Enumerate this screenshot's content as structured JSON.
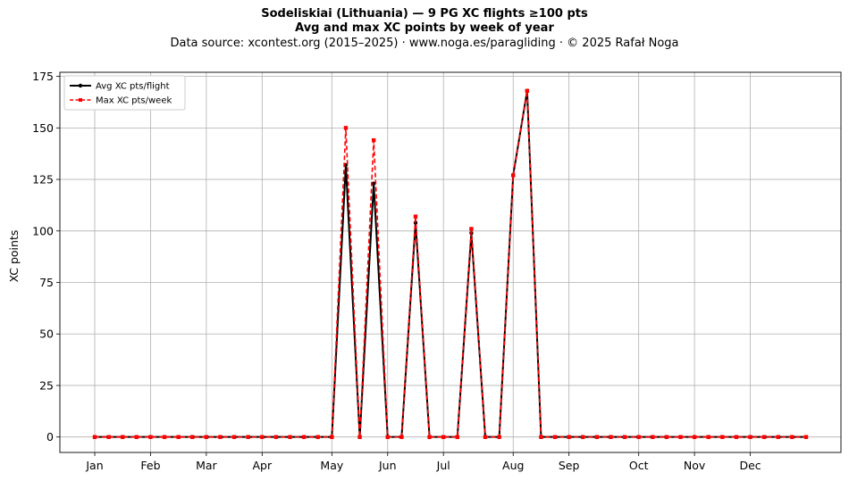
{
  "header": {
    "title": "Sodeliskiai (Lithuania)  —  9 PG XC flights ≥100 pts",
    "subtitle": "Avg and max XC points by week of year",
    "source": "Data source: xcontest.org (2015–2025)  ·  www.noga.es/paragliding  ·  © 2025 Rafał Noga"
  },
  "chart_data": {
    "type": "line",
    "title": "Sodeliskiai (Lithuania)  —  9 PG XC flights ≥100 pts",
    "subtitle": "Avg and max XC points by week of year",
    "xlabel": "",
    "ylabel": "XC points",
    "x": [
      1,
      2,
      3,
      4,
      5,
      6,
      7,
      8,
      9,
      10,
      11,
      12,
      13,
      14,
      15,
      16,
      17,
      18,
      19,
      20,
      21,
      22,
      23,
      24,
      25,
      26,
      27,
      28,
      29,
      30,
      31,
      32,
      33,
      34,
      35,
      36,
      37,
      38,
      39,
      40,
      41,
      42,
      43,
      44,
      45,
      46,
      47,
      48,
      49,
      50,
      51,
      52
    ],
    "xlim": [
      -1.5,
      54.5
    ],
    "ylim": [
      -7.5,
      177
    ],
    "yticks": [
      0,
      25,
      50,
      75,
      100,
      125,
      150,
      175
    ],
    "month_ticks": [
      {
        "label": "Jan",
        "week": 1
      },
      {
        "label": "Feb",
        "week": 5
      },
      {
        "label": "Mar",
        "week": 9
      },
      {
        "label": "Apr",
        "week": 13
      },
      {
        "label": "May",
        "week": 18
      },
      {
        "label": "Jun",
        "week": 22
      },
      {
        "label": "Jul",
        "week": 26
      },
      {
        "label": "Aug",
        "week": 31
      },
      {
        "label": "Sep",
        "week": 35
      },
      {
        "label": "Oct",
        "week": 40
      },
      {
        "label": "Nov",
        "week": 44
      },
      {
        "label": "Dec",
        "week": 48
      }
    ],
    "grid": true,
    "legend_position": "top-left",
    "series": [
      {
        "name": "Avg XC pts/flight",
        "color": "#000000",
        "style": "solid",
        "marker": "circle",
        "values": [
          0,
          0,
          0,
          0,
          0,
          0,
          0,
          0,
          0,
          0,
          0,
          0,
          0,
          0,
          0,
          0,
          0,
          0,
          132,
          0,
          123,
          0,
          0,
          104,
          0,
          0,
          0,
          99,
          0,
          0,
          127,
          168,
          0,
          0,
          0,
          0,
          0,
          0,
          0,
          0,
          0,
          0,
          0,
          0,
          0,
          0,
          0,
          0,
          0,
          0,
          0,
          0
        ]
      },
      {
        "name": "Max XC pts/week",
        "color": "#ff0000",
        "style": "dashed",
        "marker": "square",
        "values": [
          0,
          0,
          0,
          0,
          0,
          0,
          0,
          0,
          0,
          0,
          0,
          0,
          0,
          0,
          0,
          0,
          0,
          0,
          150,
          0,
          144,
          0,
          0,
          107,
          0,
          0,
          0,
          101,
          0,
          0,
          127,
          168,
          0,
          0,
          0,
          0,
          0,
          0,
          0,
          0,
          0,
          0,
          0,
          0,
          0,
          0,
          0,
          0,
          0,
          0,
          0,
          0
        ]
      }
    ]
  }
}
